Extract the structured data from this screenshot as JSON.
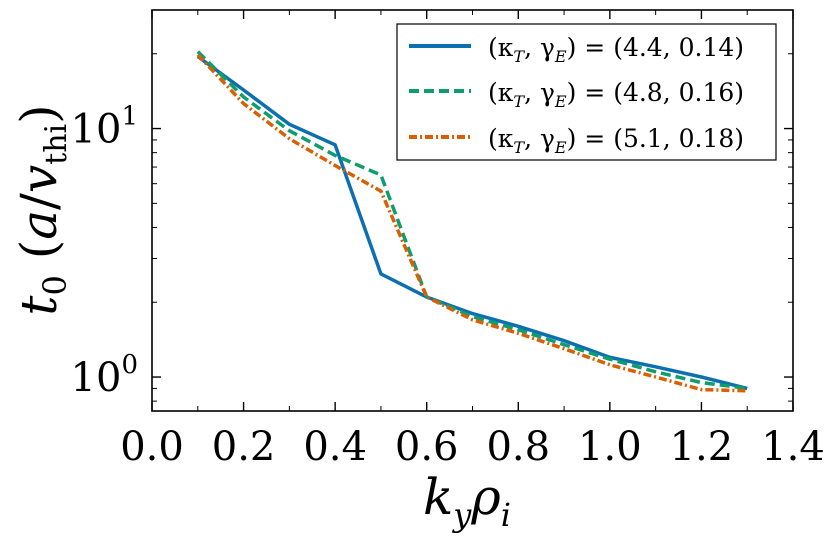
{
  "chart_data": {
    "type": "line",
    "title": "",
    "xlabel": "k_y ρ_i",
    "ylabel": "t_0 (a/v_thi)",
    "yscale": "log",
    "xlim": [
      0.0,
      1.4
    ],
    "ylim": [
      0.73,
      30
    ],
    "x_ticks": [
      0.0,
      0.2,
      0.4,
      0.6,
      0.8,
      1.0,
      1.2,
      1.4
    ],
    "x_tick_labels": [
      "0.0",
      "0.2",
      "0.4",
      "0.6",
      "0.8",
      "1.0",
      "1.2",
      "1.4"
    ],
    "y_major_ticks": [
      1,
      10
    ],
    "y_tick_labels": [
      {
        "base": "10",
        "exp": "0"
      },
      {
        "base": "10",
        "exp": "1"
      }
    ],
    "y_minor_ticks": [
      0.8,
      0.9,
      2,
      3,
      4,
      5,
      6,
      7,
      8,
      9,
      20,
      30
    ],
    "x_minor_ticks": [
      0.1,
      0.3,
      0.5,
      0.7,
      0.9,
      1.1,
      1.3
    ],
    "legend_position": "top-right",
    "series": [
      {
        "name": "(κ_T, γ_E) = (4.4, 0.14)",
        "label_prefix": "(κ",
        "label_sub1": "T",
        "label_mid": ", γ",
        "label_sub2": "E",
        "label_value": ") = (4.4, 0.14)",
        "color": "#0c6fb0",
        "dash": "solid",
        "x": [
          0.1,
          0.2,
          0.3,
          0.4,
          0.5,
          0.6,
          0.7,
          0.8,
          0.9,
          1.0,
          1.1,
          1.2,
          1.3
        ],
        "y": [
          19.5,
          14.3,
          10.4,
          8.6,
          2.6,
          2.1,
          1.8,
          1.6,
          1.4,
          1.2,
          1.1,
          1.0,
          0.9
        ]
      },
      {
        "name": "(κ_T, γ_E) = (4.8, 0.16)",
        "label_prefix": "(κ",
        "label_sub1": "T",
        "label_mid": ", γ",
        "label_sub2": "E",
        "label_value": ") = (4.8, 0.16)",
        "color": "#0e9e6e",
        "dash": "dashed",
        "x": [
          0.1,
          0.2,
          0.3,
          0.4,
          0.5,
          0.6,
          0.7,
          0.8,
          0.9,
          1.0,
          1.1,
          1.2,
          1.3
        ],
        "y": [
          20.4,
          13.4,
          9.8,
          7.8,
          6.5,
          2.1,
          1.75,
          1.55,
          1.35,
          1.18,
          1.05,
          0.95,
          0.9
        ]
      },
      {
        "name": "(κ_T, γ_E) = (5.1, 0.18)",
        "label_prefix": "(κ",
        "label_sub1": "T",
        "label_mid": ", γ",
        "label_sub2": "E",
        "label_value": ") = (5.1, 0.18)",
        "color": "#d95f02",
        "dash": "dashdot",
        "x": [
          0.1,
          0.2,
          0.3,
          0.4,
          0.5,
          0.6,
          0.7,
          0.8,
          0.9,
          1.0,
          1.1,
          1.2,
          1.3
        ],
        "y": [
          19.8,
          12.6,
          9.1,
          7.1,
          5.6,
          2.1,
          1.7,
          1.5,
          1.3,
          1.12,
          1.0,
          0.89,
          0.88
        ]
      }
    ]
  }
}
